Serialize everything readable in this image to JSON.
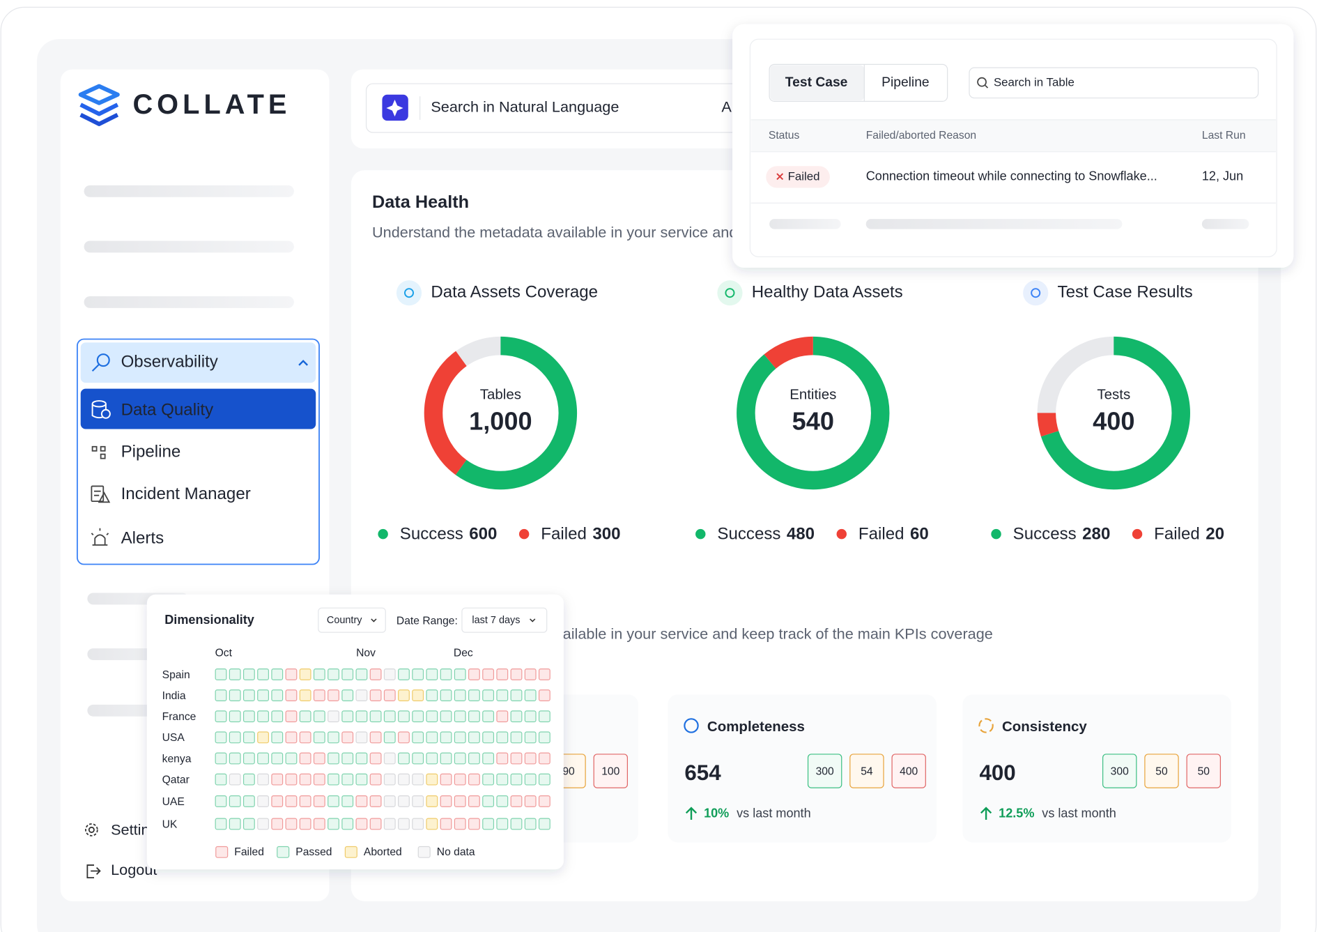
{
  "sidebar": {
    "logo": "COLLATE",
    "menu": {
      "group": "Observability",
      "items": [
        "Data Quality",
        "Pipeline",
        "Incident Manager",
        "Alerts"
      ]
    },
    "footer": [
      "Settings",
      "Logout"
    ]
  },
  "search": {
    "placeholder": "Search in Natural Language",
    "cut": "A"
  },
  "data_health": {
    "title": "Data Health",
    "subtitle": "Understand the metadata available in your service and keep track of the main KPIs coverage",
    "success_label": "Success",
    "failed_label": "Failed",
    "donuts": [
      {
        "title": "Data Assets Coverage",
        "center_label": "Tables",
        "total": {
          "value": 1000,
          "label": "1,000"
        },
        "success": 600,
        "failed": 300
      },
      {
        "title": "Healthy Data Assets",
        "center_label": "Entities",
        "total": 540,
        "success": 480,
        "failed": 60
      },
      {
        "title": "Test Case Results",
        "center_label": "Tests",
        "total": 400,
        "success": 280,
        "failed": 20
      }
    ]
  },
  "kpis": [
    {
      "badges": [
        90,
        100
      ]
    },
    {
      "title": "Completeness",
      "value": 654,
      "badges": [
        300,
        54,
        400
      ],
      "change": "10%",
      "compare": "vs last month"
    },
    {
      "title": "Consistency",
      "value": 400,
      "badges": [
        300,
        50,
        50
      ],
      "change": "12.5%",
      "compare": "vs last month"
    }
  ],
  "test_table": {
    "tabs": [
      "Test Case",
      "Pipeline"
    ],
    "search_placeholder": "Search in Table",
    "headers": [
      "Status",
      "Failed/aborted Reason",
      "Last Run"
    ],
    "rows": [
      [
        "Failed",
        "Connection timeout while connecting to Snowflake...",
        "12, Jun"
      ]
    ]
  },
  "heatmap": {
    "title": "Dimensionality",
    "filter": "Country",
    "date_label": "Date Range:",
    "date_value": "last 7 days",
    "months": [
      "Oct",
      "Nov",
      "Dec"
    ],
    "legend": [
      {
        "label": "Failed",
        "fill": "#fde8e8",
        "stroke": "#f09a9a"
      },
      {
        "label": "Passed",
        "fill": "#e7f8f0",
        "stroke": "#7fd3ae"
      },
      {
        "label": "Aborted",
        "fill": "#fdf2cf",
        "stroke": "#efcb6a"
      },
      {
        "label": "No data",
        "fill": "#f6f6f7",
        "stroke": "#d7d8db"
      }
    ],
    "rows": [
      {
        "name": "Spain",
        "cells": [
          1,
          1,
          1,
          1,
          1,
          0,
          2,
          1,
          1,
          1,
          1,
          0,
          3,
          1,
          1,
          1,
          1,
          1,
          0,
          0,
          0,
          0,
          0,
          0
        ]
      },
      {
        "name": "India",
        "cells": [
          1,
          1,
          1,
          1,
          1,
          0,
          2,
          0,
          0,
          1,
          3,
          0,
          0,
          2,
          2,
          1,
          1,
          1,
          1,
          1,
          1,
          1,
          1,
          0
        ]
      },
      {
        "name": "France",
        "cells": [
          1,
          1,
          1,
          1,
          1,
          0,
          1,
          1,
          3,
          1,
          1,
          1,
          1,
          1,
          1,
          1,
          1,
          1,
          1,
          1,
          0,
          1,
          1,
          1
        ]
      },
      {
        "name": "USA",
        "cells": [
          1,
          1,
          1,
          2,
          1,
          0,
          0,
          1,
          1,
          0,
          3,
          0,
          1,
          0,
          1,
          1,
          1,
          1,
          1,
          1,
          1,
          1,
          1,
          1
        ]
      },
      {
        "name": "kenya",
        "cells": [
          1,
          1,
          1,
          1,
          1,
          1,
          0,
          0,
          1,
          1,
          1,
          0,
          3,
          1,
          1,
          1,
          1,
          1,
          1,
          1,
          0,
          0,
          0,
          0
        ]
      },
      {
        "name": "Qatar",
        "cells": [
          1,
          3,
          1,
          3,
          0,
          0,
          0,
          0,
          1,
          1,
          1,
          0,
          3,
          3,
          3,
          2,
          0,
          0,
          0,
          1,
          1,
          1,
          1,
          1
        ]
      },
      {
        "name": "UAE",
        "cells": [
          1,
          1,
          1,
          3,
          0,
          0,
          0,
          0,
          1,
          1,
          0,
          0,
          3,
          3,
          3,
          2,
          0,
          0,
          0,
          1,
          1,
          0,
          0,
          0
        ]
      },
      {
        "name": "UK",
        "cells": [
          1,
          1,
          1,
          3,
          0,
          0,
          0,
          0,
          1,
          1,
          0,
          0,
          3,
          3,
          3,
          2,
          0,
          0,
          0,
          1,
          1,
          1,
          1,
          1
        ]
      }
    ]
  }
}
